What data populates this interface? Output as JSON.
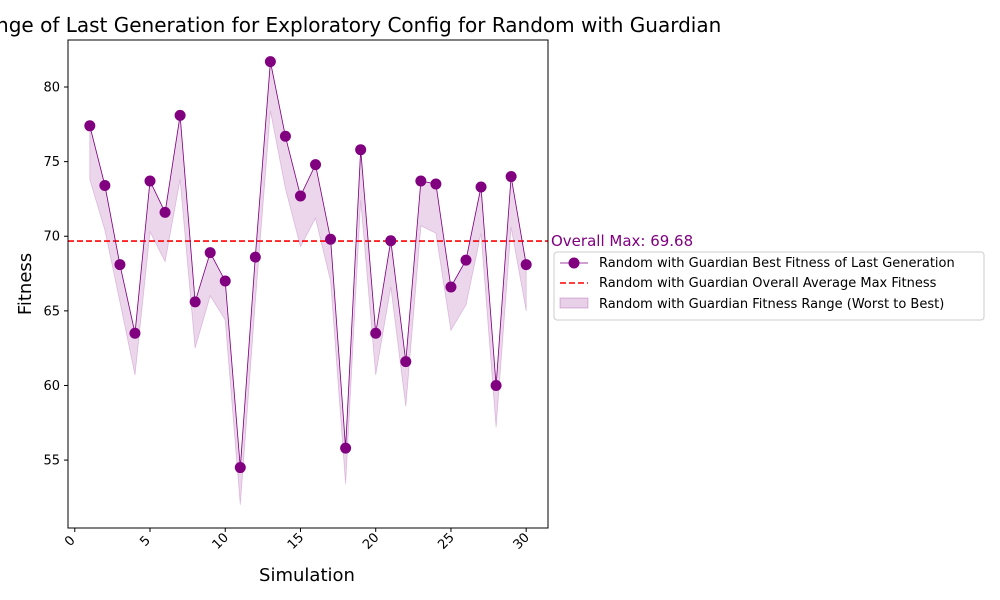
{
  "chart_data": {
    "type": "line",
    "title": "Fitness Range of Last Generation for Exploratory Config for Random with Guardian",
    "xlabel": "Simulation",
    "ylabel": "Fitness",
    "xlim": [
      -0.45,
      31.45
    ],
    "ylim": [
      50.45,
      83.15
    ],
    "xticks": [
      0,
      5,
      10,
      15,
      20,
      25,
      30
    ],
    "xtick_labels": [
      "0",
      "5",
      "10",
      "15",
      "20",
      "25",
      "30"
    ],
    "yticks": [
      55,
      60,
      65,
      70,
      75,
      80
    ],
    "ytick_labels": [
      "55",
      "60",
      "65",
      "70",
      "75",
      "80"
    ],
    "x": [
      1,
      2,
      3,
      4,
      5,
      6,
      7,
      8,
      9,
      10,
      11,
      12,
      13,
      14,
      15,
      16,
      17,
      18,
      19,
      20,
      21,
      22,
      23,
      24,
      25,
      26,
      27,
      28,
      29,
      30
    ],
    "series": [
      {
        "name": "Random with Guardian Best Fitness of Last Generation",
        "color": "#800080",
        "values": [
          77.4,
          73.4,
          68.1,
          63.5,
          73.7,
          71.6,
          78.1,
          65.6,
          68.9,
          67.0,
          54.5,
          68.6,
          81.7,
          76.7,
          72.7,
          74.8,
          69.8,
          55.8,
          75.8,
          63.5,
          69.7,
          61.6,
          73.7,
          73.5,
          66.6,
          68.4,
          73.3,
          60.0,
          74.0,
          68.1
        ]
      },
      {
        "name": "Random with Guardian Fitness Range (Worst to Best)",
        "color": "#800080",
        "lower": [
          73.8,
          70.4,
          65.6,
          60.7,
          70.3,
          68.3,
          73.8,
          62.5,
          66.0,
          64.4,
          52.0,
          65.6,
          78.4,
          73.2,
          69.3,
          71.2,
          67.0,
          53.4,
          72.4,
          60.7,
          66.6,
          58.6,
          70.7,
          70.2,
          63.7,
          65.4,
          70.2,
          57.2,
          70.6,
          65.0
        ],
        "upper": [
          77.4,
          73.4,
          68.1,
          63.5,
          73.7,
          71.6,
          78.1,
          65.6,
          68.9,
          67.0,
          54.5,
          68.6,
          81.7,
          76.7,
          72.7,
          74.8,
          69.8,
          55.8,
          75.8,
          63.5,
          69.7,
          61.6,
          73.7,
          73.5,
          66.6,
          68.4,
          73.3,
          60.0,
          74.0,
          68.1
        ]
      }
    ],
    "reference_line": {
      "name": "Random with Guardian Overall Average Max Fitness",
      "value": 69.68,
      "color": "#ff0000",
      "style": "dashed"
    },
    "annotation": "Overall Max: 69.68",
    "legend": {
      "placement": "right-outside",
      "entries": [
        "Random with Guardian Best Fitness of Last Generation",
        "Random with Guardian Overall Average Max Fitness",
        "Random with Guardian Fitness Range (Worst to Best)"
      ]
    },
    "grid": false
  }
}
